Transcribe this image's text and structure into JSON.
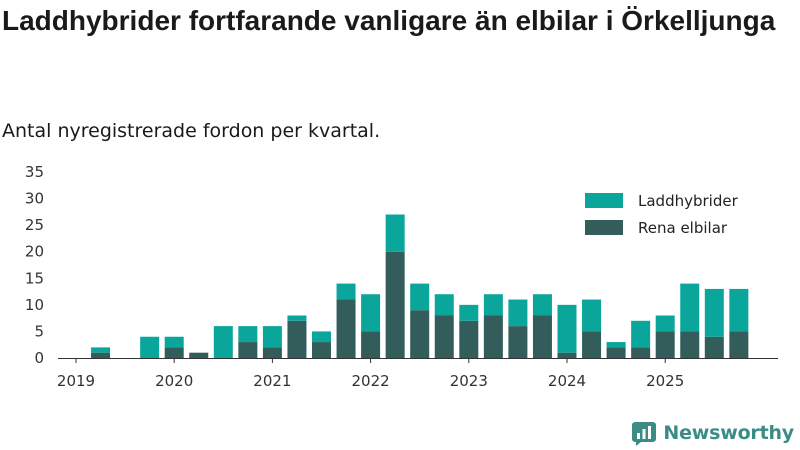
{
  "header": {
    "title": "Laddhybrider fortfarande vanligare än elbilar i Örkelljunga",
    "subtitle": "Antal nyregistrerade fordon per kvartal."
  },
  "brand": {
    "name": "Newsworthy",
    "icon": "newsworthy-logo-icon"
  },
  "colors": {
    "laddhybrider": "#0aa59b",
    "rena_elbilar": "#325d5a",
    "axis": "#333333"
  },
  "chart_data": {
    "type": "bar",
    "stacked": true,
    "title": "Laddhybrider fortfarande vanligare än elbilar i Örkelljunga",
    "subtitle": "Antal nyregistrerade fordon per kvartal.",
    "xlabel": "",
    "ylabel": "",
    "ylim": [
      0,
      35
    ],
    "yticks": [
      "0",
      "5",
      "10",
      "15",
      "20",
      "25",
      "30",
      "35"
    ],
    "x_tick_labels": [
      "2019",
      "2020",
      "2021",
      "2022",
      "2023",
      "2024",
      "2025"
    ],
    "categories": [
      "2019 Q1",
      "2019 Q2",
      "2019 Q3",
      "2019 Q4",
      "2020 Q1",
      "2020 Q2",
      "2020 Q3",
      "2020 Q4",
      "2021 Q1",
      "2021 Q2",
      "2021 Q3",
      "2021 Q4",
      "2022 Q1",
      "2022 Q2",
      "2022 Q3",
      "2022 Q4",
      "2023 Q1",
      "2023 Q2",
      "2023 Q3",
      "2023 Q4",
      "2024 Q1",
      "2024 Q2",
      "2024 Q3",
      "2024 Q4",
      "2025 Q1",
      "2025 Q2",
      "2025 Q3",
      "2025 Q4"
    ],
    "legend_position": "top-right",
    "grid": false,
    "series": [
      {
        "name": "Rena elbilar",
        "values": [
          0,
          1,
          0,
          0,
          2,
          1,
          0,
          3,
          2,
          7,
          3,
          11,
          5,
          20,
          9,
          8,
          7,
          8,
          6,
          8,
          1,
          5,
          2,
          2,
          5,
          5,
          4,
          5
        ]
      },
      {
        "name": "Laddhybrider",
        "values": [
          0,
          1,
          0,
          4,
          2,
          0,
          6,
          3,
          4,
          1,
          2,
          3,
          7,
          7,
          5,
          4,
          3,
          4,
          5,
          4,
          9,
          6,
          1,
          5,
          3,
          9,
          9,
          8
        ]
      }
    ]
  }
}
